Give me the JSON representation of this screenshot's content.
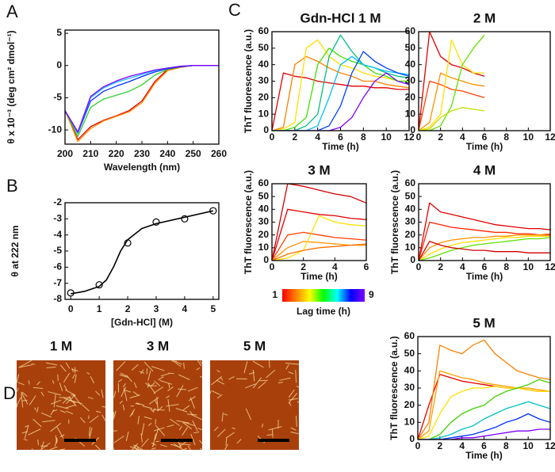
{
  "panel_labels": [
    "A",
    "B",
    "C",
    "D"
  ],
  "chart_data": [
    {
      "type": "line",
      "xlabel": "Wavelength (nm)",
      "ylabel": "θ x 10⁻³ (deg cm² dmol⁻¹)",
      "xlim": [
        200,
        260
      ],
      "ylim": [
        -12.2,
        5.5
      ],
      "xticks": [
        200,
        210,
        220,
        230,
        240,
        250,
        260
      ],
      "yticks": [
        5,
        0,
        -5,
        -10
      ],
      "x": [
        200,
        205,
        210,
        215,
        220,
        225,
        230,
        235,
        240,
        245,
        250,
        255,
        260
      ],
      "series": [
        {
          "color": "#e00000",
          "values": [
            -7,
            -11.5,
            -9.5,
            -8.5,
            -7.8,
            -7,
            -5.5,
            -2.5,
            -0.6,
            -0.2,
            0,
            0,
            0
          ]
        },
        {
          "color": "#ff9000",
          "values": [
            -7,
            -11.8,
            -9.8,
            -8.6,
            -7.9,
            -7.2,
            -5.8,
            -2.8,
            -0.8,
            -0.3,
            0,
            0,
            0
          ]
        },
        {
          "color": "#30d030",
          "values": [
            -7,
            -11,
            -6.5,
            -5.2,
            -4.6,
            -4,
            -3,
            -1.5,
            -0.6,
            -0.2,
            0,
            0,
            0
          ]
        },
        {
          "color": "#0030ff",
          "values": [
            -7,
            -10.5,
            -5.5,
            -4,
            -3.2,
            -2.5,
            -1.7,
            -1,
            -0.5,
            -0.2,
            0,
            0,
            0
          ]
        },
        {
          "color": "#20c0ff",
          "values": [
            -7,
            -10.4,
            -5,
            -3.5,
            -2.6,
            -2,
            -1.4,
            -0.8,
            -0.4,
            -0.1,
            0,
            0,
            0
          ]
        },
        {
          "color": "#8000ff",
          "values": [
            -7,
            -10.3,
            -4.8,
            -3.3,
            -2.4,
            -1.7,
            -1.2,
            -0.7,
            -0.4,
            -0.1,
            0,
            0,
            0
          ]
        }
      ]
    },
    {
      "type": "scatter",
      "xlabel": "[Gdn-HCl] (M)",
      "ylabel": "θ at 222 nm",
      "xlim": [
        -0.2,
        5.2
      ],
      "ylim": [
        -8,
        -2
      ],
      "xticks": [
        0,
        1,
        2,
        3,
        4,
        5
      ],
      "yticks": [
        -2,
        -3,
        -4,
        -5,
        -6,
        -7,
        -8
      ],
      "series": [
        {
          "kind": "line",
          "color": "#000000",
          "x": [
            0,
            0.5,
            1,
            1.25,
            1.5,
            1.75,
            2,
            2.5,
            3,
            4,
            5
          ],
          "values": [
            -7.65,
            -7.5,
            -7.2,
            -6.8,
            -6.0,
            -5.0,
            -4.3,
            -3.6,
            -3.3,
            -2.9,
            -2.5
          ]
        },
        {
          "kind": "marker",
          "color": "#000000",
          "x": [
            0,
            1,
            2,
            3,
            4,
            5
          ],
          "values": [
            -7.6,
            -7.1,
            -4.5,
            -3.2,
            -3,
            -2.5
          ]
        }
      ]
    },
    {
      "type": "line",
      "title": "Gdn-HCl 1 M",
      "xlabel": "Time (h)",
      "ylabel": "ThT fluorescence (a.u.)",
      "xlim": [
        0,
        12
      ],
      "ylim": [
        0,
        60
      ],
      "xticks": [
        0,
        2,
        4,
        6,
        8,
        10,
        12
      ],
      "yticks": [
        0,
        10,
        20,
        30,
        40,
        50,
        60
      ],
      "x": [
        0,
        1,
        2,
        3,
        4,
        5,
        6,
        7,
        8,
        9,
        10,
        11,
        12
      ],
      "series": [
        {
          "color": "#e00000",
          "values": [
            0,
            35,
            33,
            32,
            30,
            29,
            28,
            27,
            27,
            26,
            26,
            25,
            25
          ]
        },
        {
          "color": "#ff8000",
          "values": [
            0,
            2,
            40,
            45,
            42,
            38,
            35,
            33,
            30,
            30,
            28,
            27,
            26
          ]
        },
        {
          "color": "#ffe000",
          "values": [
            0,
            1,
            5,
            50,
            55,
            45,
            40,
            38,
            35,
            33,
            32,
            30,
            30
          ]
        },
        {
          "color": "#40e000",
          "values": [
            0,
            0,
            2,
            8,
            40,
            50,
            45,
            42,
            40,
            35,
            33,
            30,
            30
          ]
        },
        {
          "color": "#00c080",
          "values": [
            0,
            0,
            0,
            3,
            10,
            45,
            58,
            48,
            40,
            38,
            35,
            33,
            32
          ]
        },
        {
          "color": "#00c0ff",
          "values": [
            0,
            0,
            0,
            0,
            3,
            20,
            40,
            45,
            40,
            38,
            36,
            35,
            34
          ]
        },
        {
          "color": "#0040ff",
          "values": [
            0,
            0,
            0,
            0,
            0,
            3,
            15,
            35,
            48,
            42,
            38,
            35,
            33
          ]
        },
        {
          "color": "#8000ff",
          "values": [
            0,
            0,
            0,
            0,
            0,
            0,
            2,
            8,
            20,
            30,
            35,
            30,
            28
          ]
        }
      ]
    },
    {
      "type": "line",
      "title": "2 M",
      "xlabel": "Time (h)",
      "xlim": [
        0,
        12
      ],
      "ylim": [
        0,
        60
      ],
      "xticks": [
        0,
        2,
        4,
        6,
        8,
        10,
        12
      ],
      "yticks": [
        0,
        10,
        20,
        30,
        40,
        50,
        60
      ],
      "x": [
        0,
        1,
        2,
        3,
        4,
        5,
        6
      ],
      "series": [
        {
          "color": "#e00000",
          "values": [
            0,
            60,
            45,
            40,
            38,
            35,
            33
          ]
        },
        {
          "color": "#ff4000",
          "values": [
            0,
            30,
            28,
            25,
            24,
            22,
            20
          ]
        },
        {
          "color": "#ff9000",
          "values": [
            0,
            5,
            35,
            32,
            30,
            28,
            27
          ]
        },
        {
          "color": "#ffe000",
          "values": [
            0,
            2,
            10,
            55,
            40,
            35,
            35
          ]
        },
        {
          "color": "#60e000",
          "values": [
            0,
            0,
            3,
            15,
            40,
            50,
            58
          ]
        },
        {
          "color": "#c0e000",
          "values": [
            0,
            1,
            8,
            12,
            14,
            13,
            12
          ]
        }
      ]
    },
    {
      "type": "line",
      "title": "3 M",
      "xlabel": "Time (h)",
      "ylabel": "ThT fluorescence (a.u.)",
      "xlim": [
        0,
        6
      ],
      "ylim": [
        0,
        60
      ],
      "xticks": [
        0,
        2,
        4,
        6
      ],
      "yticks": [
        0,
        10,
        20,
        30,
        40,
        50,
        60
      ],
      "x": [
        0,
        1,
        2,
        3,
        4,
        5,
        6
      ],
      "series": [
        {
          "color": "#d00000",
          "values": [
            0,
            60,
            58,
            55,
            52,
            50,
            45
          ]
        },
        {
          "color": "#e00000",
          "values": [
            0,
            40,
            38,
            36,
            35,
            33,
            32
          ]
        },
        {
          "color": "#ff4000",
          "values": [
            0,
            20,
            22,
            20,
            18,
            17,
            16
          ]
        },
        {
          "color": "#ff9000",
          "values": [
            0,
            10,
            15,
            14,
            13,
            12,
            12
          ]
        },
        {
          "color": "#ffe000",
          "values": [
            0,
            2,
            8,
            35,
            30,
            28,
            27
          ]
        },
        {
          "color": "#ff7000",
          "values": [
            0,
            5,
            8,
            10,
            11,
            12,
            13
          ]
        }
      ]
    },
    {
      "type": "line",
      "title": "4 M",
      "xlabel": "Time (h)",
      "ylabel": "ThT fluorescence (a.u.)",
      "xlim": [
        0,
        12
      ],
      "ylim": [
        0,
        60
      ],
      "xticks": [
        0,
        2,
        4,
        6,
        8,
        10,
        12
      ],
      "yticks": [
        0,
        10,
        20,
        30,
        40,
        50,
        60
      ],
      "x": [
        0,
        1,
        2,
        3,
        4,
        5,
        6,
        7,
        8,
        9,
        10,
        11,
        12
      ],
      "series": [
        {
          "color": "#e00000",
          "values": [
            0,
            45,
            38,
            36,
            34,
            32,
            30,
            28,
            27,
            26,
            25,
            25,
            24
          ]
        },
        {
          "color": "#ff2000",
          "values": [
            0,
            30,
            28,
            26,
            25,
            24,
            23,
            22,
            22,
            21,
            21,
            20,
            20
          ]
        },
        {
          "color": "#ff9000",
          "values": [
            0,
            10,
            14,
            16,
            17,
            18,
            18,
            19,
            19,
            20,
            20,
            20,
            21
          ]
        },
        {
          "color": "#ffe000",
          "values": [
            0,
            5,
            9,
            12,
            14,
            15,
            16,
            17,
            18,
            18,
            19,
            19,
            19
          ]
        },
        {
          "color": "#60e000",
          "values": [
            0,
            2,
            5,
            8,
            10,
            12,
            13,
            14,
            15,
            16,
            17,
            17,
            18
          ]
        },
        {
          "color": "#d00000",
          "values": [
            0,
            15,
            12,
            10,
            9,
            8,
            8,
            7,
            7,
            7,
            6,
            6,
            6
          ]
        }
      ]
    },
    {
      "type": "line",
      "title": "5 M",
      "xlabel": "Time (h)",
      "ylabel": "ThT fluorescence (a.u.)",
      "xlim": [
        0,
        12
      ],
      "ylim": [
        0,
        60
      ],
      "xticks": [
        0,
        2,
        4,
        6,
        8,
        10,
        12
      ],
      "yticks": [
        0,
        10,
        20,
        30,
        40,
        50,
        60
      ],
      "x": [
        0,
        1,
        2,
        3,
        4,
        5,
        6,
        7,
        8,
        9,
        10,
        11,
        12
      ],
      "series": [
        {
          "color": "#e00000",
          "values": [
            0,
            20,
            38,
            36,
            34,
            33,
            32,
            31,
            30,
            30,
            29,
            28,
            28
          ]
        },
        {
          "color": "#ff8000",
          "values": [
            0,
            10,
            55,
            52,
            50,
            55,
            58,
            50,
            45,
            40,
            38,
            36,
            35
          ]
        },
        {
          "color": "#ffa000",
          "values": [
            0,
            5,
            40,
            38,
            36,
            35,
            33,
            32,
            31,
            30,
            30,
            29,
            28
          ]
        },
        {
          "color": "#ffe000",
          "values": [
            0,
            2,
            15,
            25,
            28,
            30,
            30,
            31,
            30,
            30,
            29,
            28,
            28
          ]
        },
        {
          "color": "#40d000",
          "values": [
            0,
            0,
            3,
            10,
            15,
            18,
            20,
            25,
            28,
            30,
            32,
            35,
            33
          ]
        },
        {
          "color": "#00c0c0",
          "values": [
            0,
            0,
            1,
            3,
            6,
            8,
            12,
            15,
            18,
            20,
            22,
            20,
            18
          ]
        },
        {
          "color": "#0030ff",
          "values": [
            0,
            0,
            0,
            1,
            2,
            3,
            5,
            7,
            10,
            12,
            15,
            12,
            10
          ]
        },
        {
          "color": "#8000ff",
          "values": [
            0,
            0,
            0,
            0,
            1,
            1,
            2,
            3,
            4,
            5,
            5,
            6,
            6
          ]
        }
      ]
    }
  ],
  "colorbar": {
    "label": "Lag time (h)",
    "min": 1,
    "max": 9,
    "colors": [
      "#ff0000",
      "#ff8000",
      "#ffff00",
      "#00ff00",
      "#00ffff",
      "#0000ff",
      "#8000ff"
    ]
  },
  "images": {
    "labels": [
      "1 M",
      "3 M",
      "5 M"
    ]
  }
}
